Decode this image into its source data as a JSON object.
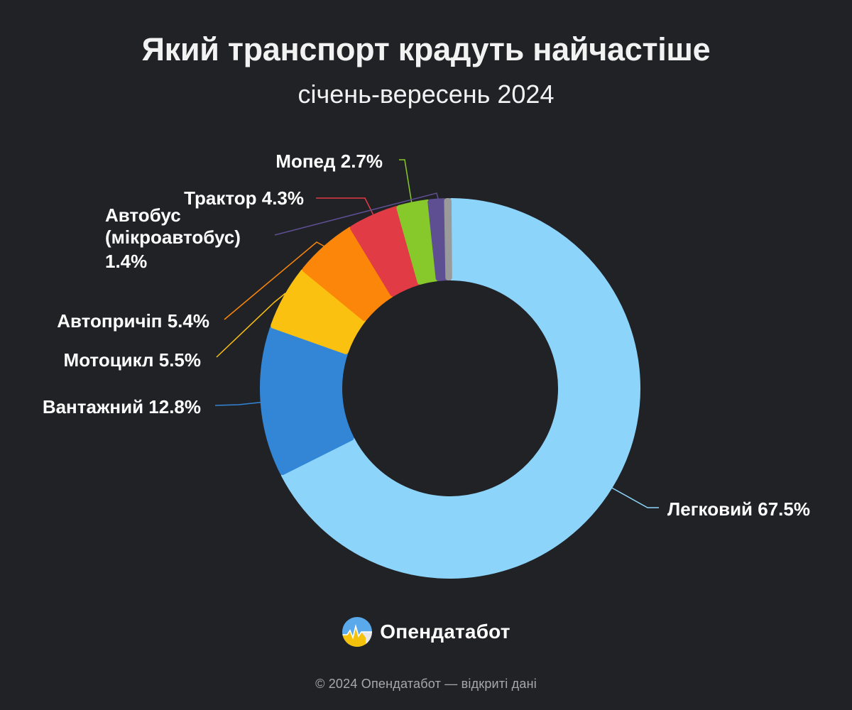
{
  "header": {
    "title": "Який транспорт крадуть найчастіше",
    "subtitle": "січень-вересень 2024"
  },
  "chart_data": {
    "type": "pie",
    "variant": "donut",
    "title": "Який транспорт крадуть найчастіше",
    "subtitle": "січень-вересень 2024",
    "slices": [
      {
        "label": "Легковий 67.5%",
        "value": 67.5,
        "color": "#8dd4fb"
      },
      {
        "label": "Вантажний 12.8%",
        "value": 12.8,
        "color": "#3385d6"
      },
      {
        "label": "Мотоцикл 5.5%",
        "value": 5.5,
        "color": "#fbc111"
      },
      {
        "label": "Автопричіп 5.4%",
        "value": 5.4,
        "color": "#fb860a"
      },
      {
        "label": "Трактор 4.3%",
        "value": 4.3,
        "color": "#e13b45"
      },
      {
        "label": "Мопед 2.7%",
        "value": 2.7,
        "color": "#87c82b"
      },
      {
        "label": "Автобус (мікроавтобус) 1.4%",
        "label_lines": [
          "Автобус",
          "(мікроавтобус)",
          "1.4%"
        ],
        "value": 1.4,
        "color": "#5e4f93"
      },
      {
        "label": "",
        "value": 0.4,
        "color": "#9a9a9a"
      }
    ]
  },
  "brand": {
    "name": "Опендатабот",
    "logo_icon": "opendatabot-logo-icon",
    "logo_colors": [
      "#5aa9ea",
      "#f4c20d",
      "#e8e8e8"
    ]
  },
  "footer": {
    "text": "© 2024 Опендатабот — відкриті дані"
  }
}
